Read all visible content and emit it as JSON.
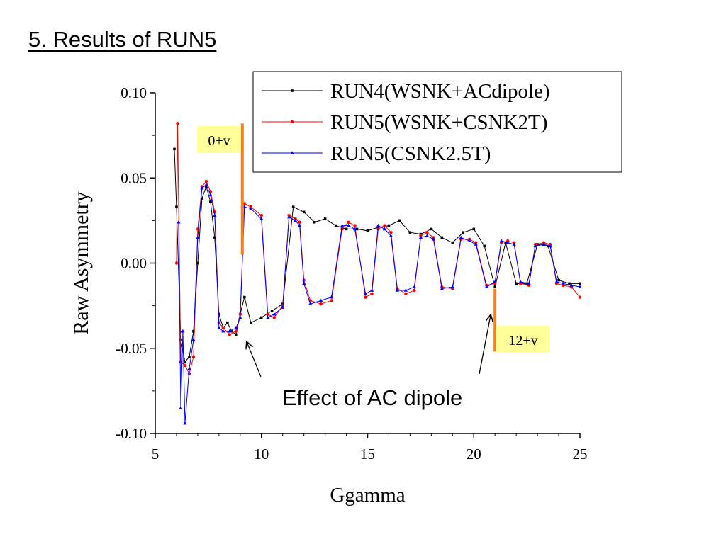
{
  "slide": {
    "title": "5. Results of RUN5"
  },
  "chart_data": {
    "type": "line",
    "xlabel": "Ggamma",
    "ylabel": "Raw Asymmetry",
    "xlim": [
      5,
      25
    ],
    "ylim": [
      -0.1,
      0.1
    ],
    "xticks": [
      "5",
      "10",
      "15",
      "20",
      "25"
    ],
    "yticks": [
      "0.10",
      "0.05",
      "0.00",
      "-0.05",
      "-0.10"
    ],
    "legend_position": "top-right",
    "series": [
      {
        "name": "RUN4(WSNK+ACdipole)",
        "color": "#000000",
        "marker": "square",
        "x": [
          5.9,
          6.0,
          6.2,
          6.4,
          6.6,
          6.8,
          7.0,
          7.2,
          7.4,
          7.6,
          7.8,
          8.0,
          8.2,
          8.4,
          8.6,
          8.8,
          9.0,
          9.2,
          9.5,
          10.0,
          10.5,
          11.0,
          11.5,
          12.0,
          12.5,
          13.0,
          13.5,
          14.0,
          14.5,
          15.0,
          15.5,
          16.0,
          16.5,
          17.0,
          17.5,
          18.0,
          18.5,
          19.0,
          19.5,
          20.0,
          20.5,
          21.0,
          21.5,
          22.0,
          22.5,
          23.0,
          23.5,
          24.0,
          24.5,
          25.0
        ],
        "y": [
          0.067,
          0.033,
          -0.045,
          -0.058,
          -0.055,
          -0.04,
          0.0,
          0.038,
          0.045,
          0.036,
          0.015,
          -0.03,
          -0.038,
          -0.035,
          -0.04,
          -0.042,
          -0.03,
          -0.02,
          -0.035,
          -0.032,
          -0.028,
          -0.024,
          0.033,
          0.03,
          0.024,
          0.026,
          0.022,
          0.02,
          0.02,
          0.019,
          0.021,
          0.022,
          0.025,
          0.018,
          0.017,
          0.02,
          0.015,
          0.012,
          0.018,
          0.02,
          0.01,
          -0.014,
          0.012,
          -0.012,
          -0.012,
          0.011,
          0.01,
          -0.01,
          -0.012,
          -0.012
        ]
      },
      {
        "name": "RUN5(WSNK+CSNK2T)",
        "color": "#ff0000",
        "marker": "circle",
        "x": [
          6.0,
          6.05,
          6.2,
          6.4,
          6.6,
          6.8,
          7.0,
          7.2,
          7.4,
          7.6,
          7.8,
          8.0,
          8.2,
          8.5,
          8.8,
          9.0,
          9.2,
          9.5,
          10.0,
          10.3,
          10.6,
          11.0,
          11.3,
          11.6,
          11.8,
          12.0,
          12.3,
          12.8,
          13.3,
          13.8,
          14.1,
          14.4,
          14.9,
          15.2,
          15.5,
          15.8,
          16.1,
          16.4,
          16.8,
          17.2,
          17.5,
          17.8,
          18.1,
          18.5,
          19.0,
          19.4,
          19.8,
          20.1,
          20.6,
          21.0,
          21.3,
          21.6,
          21.9,
          22.2,
          22.6,
          22.9,
          23.3,
          23.6,
          23.9,
          24.2,
          24.6,
          25.0
        ],
        "y": [
          0.0,
          0.082,
          -0.058,
          -0.06,
          -0.065,
          -0.055,
          0.02,
          0.045,
          0.048,
          0.042,
          0.03,
          -0.035,
          -0.038,
          -0.042,
          -0.04,
          -0.03,
          0.035,
          0.033,
          0.028,
          -0.03,
          -0.032,
          -0.025,
          0.028,
          0.026,
          0.024,
          -0.01,
          -0.022,
          -0.024,
          -0.022,
          0.02,
          0.024,
          0.022,
          -0.02,
          -0.018,
          0.02,
          0.022,
          0.018,
          -0.015,
          -0.018,
          -0.016,
          0.016,
          0.018,
          0.015,
          -0.014,
          -0.015,
          0.014,
          0.014,
          0.012,
          -0.013,
          -0.012,
          0.012,
          0.013,
          0.012,
          -0.012,
          -0.013,
          0.011,
          0.012,
          0.011,
          -0.012,
          -0.013,
          -0.014,
          -0.02
        ]
      },
      {
        "name": "RUN5(CSNK2.5T)",
        "color": "#0000ff",
        "marker": "triangle",
        "x": [
          6.1,
          6.2,
          6.3,
          6.4,
          6.6,
          6.8,
          7.0,
          7.2,
          7.4,
          7.6,
          7.8,
          8.0,
          8.2,
          8.5,
          8.8,
          9.0,
          9.2,
          9.5,
          10.0,
          10.3,
          10.6,
          11.0,
          11.3,
          11.6,
          11.8,
          12.0,
          12.3,
          12.8,
          13.3,
          13.8,
          14.1,
          14.4,
          14.9,
          15.2,
          15.5,
          15.8,
          16.1,
          16.4,
          16.8,
          17.2,
          17.5,
          17.8,
          18.1,
          18.5,
          19.0,
          19.4,
          19.8,
          20.1,
          20.6,
          21.0,
          21.3,
          21.6,
          21.9,
          22.2,
          22.6,
          22.9,
          23.3,
          23.6,
          23.9,
          24.2,
          24.6,
          25.0
        ],
        "y": [
          0.024,
          -0.085,
          -0.04,
          -0.094,
          -0.062,
          -0.045,
          0.015,
          0.044,
          0.046,
          0.04,
          0.028,
          -0.038,
          -0.04,
          -0.04,
          -0.038,
          -0.032,
          0.033,
          0.032,
          0.026,
          -0.032,
          -0.03,
          -0.026,
          0.027,
          0.025,
          0.022,
          -0.012,
          -0.024,
          -0.022,
          -0.02,
          0.022,
          0.022,
          0.02,
          -0.018,
          -0.016,
          0.022,
          0.02,
          0.016,
          -0.016,
          -0.016,
          -0.014,
          0.015,
          0.016,
          0.014,
          -0.015,
          -0.014,
          0.015,
          0.013,
          0.011,
          -0.014,
          -0.011,
          0.013,
          0.012,
          0.011,
          -0.011,
          -0.012,
          0.01,
          0.011,
          0.01,
          -0.011,
          -0.012,
          -0.013,
          -0.014
        ]
      }
    ],
    "annotations": [
      {
        "text": "0+v",
        "x": 9.1,
        "y_range": [
          0.005,
          0.082
        ]
      },
      {
        "text": "12+v",
        "x": 21.0,
        "y_range": [
          -0.052,
          -0.015
        ]
      },
      {
        "text": "Effect of AC dipole",
        "points_to": [
          [
            9.3,
            -0.046
          ],
          [
            20.8,
            -0.03
          ]
        ]
      }
    ],
    "colors": {
      "marker_line": "#f08020",
      "label_bg": "#ffff99"
    }
  }
}
